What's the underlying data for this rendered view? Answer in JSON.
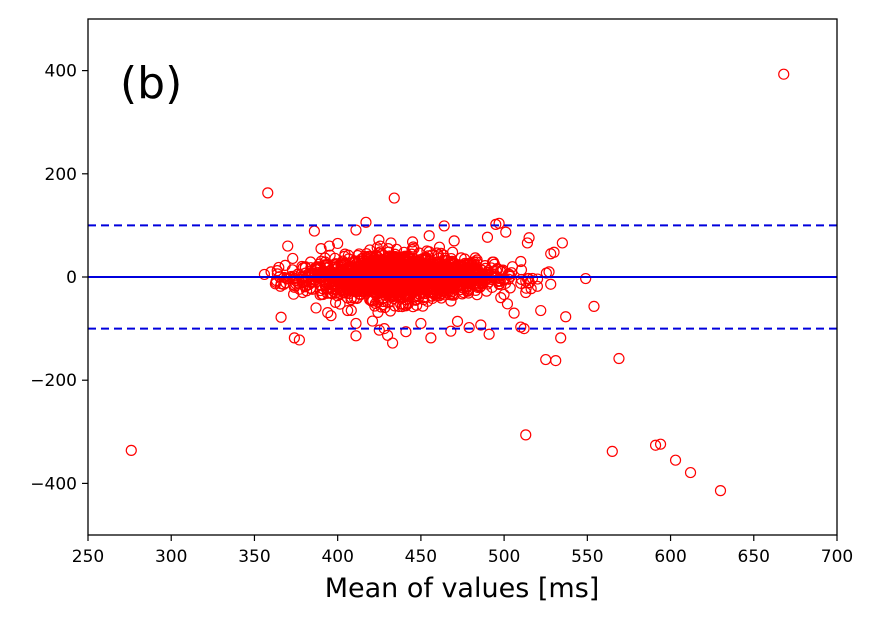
{
  "chart_data": {
    "type": "scatter",
    "title": "",
    "panel_label": "(b)",
    "xlabel": "Mean of values [ms]",
    "ylabel": "",
    "xlim": [
      250,
      700
    ],
    "ylim": [
      -500,
      500
    ],
    "x_ticks": [
      250,
      300,
      350,
      400,
      450,
      500,
      550,
      600,
      650,
      700
    ],
    "y_ticks": [
      -400,
      -200,
      0,
      200,
      400
    ],
    "y_tick_labels": [
      "−400",
      "−200",
      "0",
      "200",
      "400"
    ],
    "grid": false,
    "legend": "none",
    "colors": {
      "points": "#ff0000",
      "reference_lines": "#0000dd",
      "axes": "#000000"
    },
    "reference_lines": [
      {
        "kind": "mean",
        "y": 0,
        "style": "solid"
      },
      {
        "kind": "upper-limit",
        "y": 100,
        "style": "dashed"
      },
      {
        "kind": "lower-limit",
        "y": -100,
        "style": "dashed"
      }
    ],
    "cluster": {
      "description": "dense core of overlapping points",
      "x_range": [
        360,
        530
      ],
      "y_range": [
        -130,
        110
      ],
      "approx_count": 1800
    },
    "points": [
      [
        668,
        393
      ],
      [
        276,
        -336
      ],
      [
        630,
        -414
      ],
      [
        612,
        -379
      ],
      [
        603,
        -355
      ],
      [
        594,
        -324
      ],
      [
        591,
        -326
      ],
      [
        565,
        -338
      ],
      [
        513,
        -306
      ],
      [
        569,
        -158
      ],
      [
        531,
        -162
      ],
      [
        525,
        -160
      ],
      [
        534,
        -118
      ],
      [
        554,
        -57
      ],
      [
        537,
        -77
      ],
      [
        549,
        -3
      ],
      [
        535,
        66
      ],
      [
        530,
        48
      ],
      [
        528,
        45
      ],
      [
        515,
        76
      ],
      [
        514,
        66
      ],
      [
        497,
        104
      ],
      [
        495,
        102
      ],
      [
        501,
        87
      ],
      [
        490,
        77
      ],
      [
        358,
        163
      ],
      [
        434,
        153
      ],
      [
        464,
        99
      ],
      [
        417,
        106
      ],
      [
        411,
        91
      ],
      [
        386,
        89
      ],
      [
        356,
        5
      ],
      [
        360,
        10
      ],
      [
        370,
        60
      ],
      [
        373,
        36
      ],
      [
        366,
        -13
      ],
      [
        366,
        -78
      ],
      [
        374,
        -118
      ],
      [
        377,
        -122
      ],
      [
        374,
        -20
      ],
      [
        379,
        -30
      ],
      [
        387,
        -60
      ],
      [
        396,
        -75
      ],
      [
        394,
        -69
      ],
      [
        406,
        -65
      ],
      [
        411,
        -114
      ],
      [
        411,
        -90
      ],
      [
        425,
        -103
      ],
      [
        428,
        -100
      ],
      [
        430,
        -113
      ],
      [
        433,
        -128
      ],
      [
        441,
        -106
      ],
      [
        450,
        -90
      ],
      [
        456,
        -118
      ],
      [
        468,
        -105
      ],
      [
        472,
        -86
      ],
      [
        479,
        -98
      ],
      [
        486,
        -93
      ],
      [
        491,
        -111
      ],
      [
        498,
        -40
      ],
      [
        502,
        -52
      ],
      [
        506,
        -70
      ],
      [
        510,
        -97
      ],
      [
        512,
        -100
      ],
      [
        513,
        -30
      ],
      [
        520,
        -18
      ],
      [
        522,
        -65
      ],
      [
        527,
        10
      ],
      [
        528,
        -14
      ],
      [
        510,
        30
      ],
      [
        505,
        20
      ],
      [
        390,
        55
      ],
      [
        395,
        60
      ],
      [
        400,
        65
      ],
      [
        432,
        66
      ],
      [
        445,
        68
      ],
      [
        455,
        80
      ],
      [
        470,
        70
      ]
    ]
  }
}
